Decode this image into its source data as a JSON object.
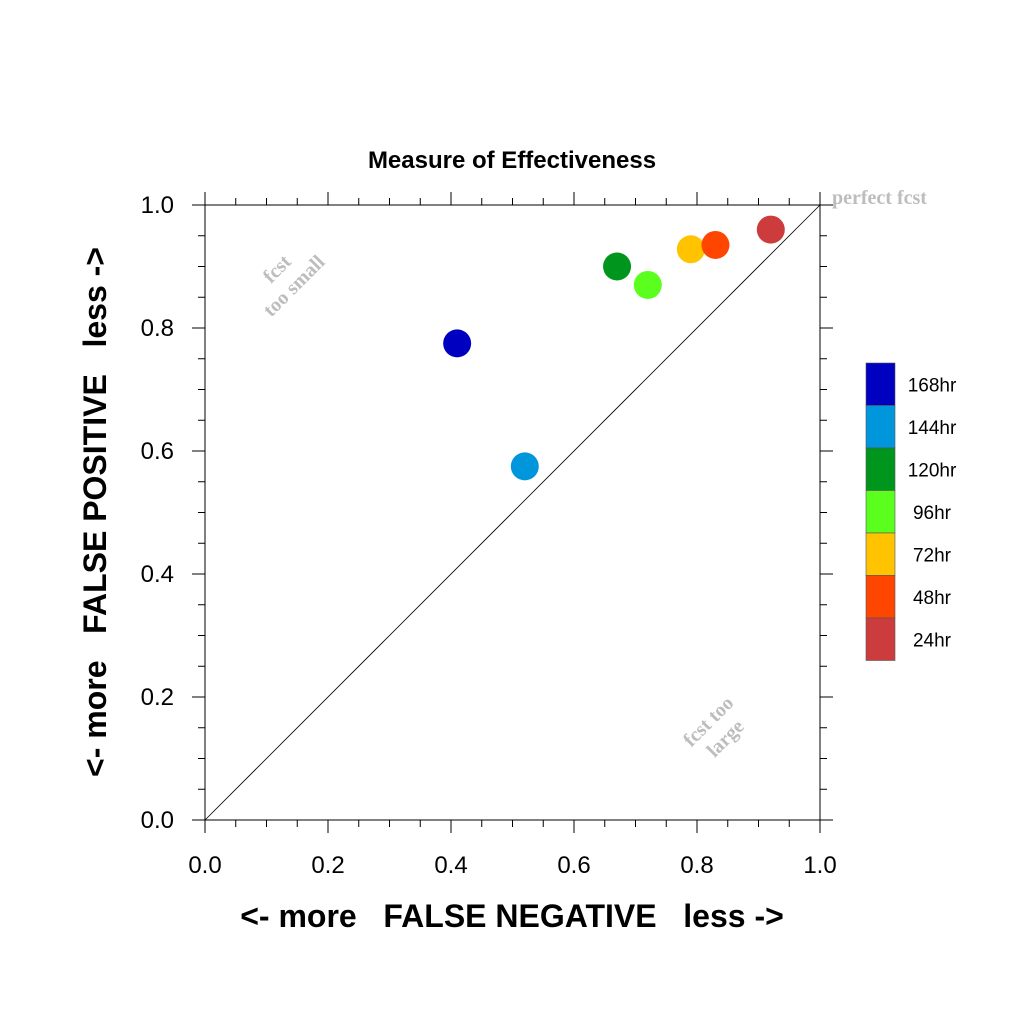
{
  "chart_data": {
    "type": "scatter",
    "title": "Measure of Effectiveness",
    "xlabel": "<- more   FALSE NEGATIVE   less ->",
    "ylabel": "<- more   FALSE POSITIVE   less ->",
    "xlim": [
      0.0,
      1.0
    ],
    "ylim": [
      0.0,
      1.0
    ],
    "xticks": [
      "0.0",
      "0.2",
      "0.4",
      "0.6",
      "0.8",
      "1.0"
    ],
    "yticks": [
      "0.0",
      "0.2",
      "0.4",
      "0.6",
      "0.8",
      "1.0"
    ],
    "grid": false,
    "legend_position": "right",
    "reference_line": "diagonal y = x",
    "series": [
      {
        "name": "168hr",
        "color": "#0000c0",
        "x": 0.41,
        "y": 0.775
      },
      {
        "name": "144hr",
        "color": "#0096dc",
        "x": 0.52,
        "y": 0.575
      },
      {
        "name": "120hr",
        "color": "#00961e",
        "x": 0.67,
        "y": 0.9
      },
      {
        "name": "96hr",
        "color": "#5aff1e",
        "x": 0.72,
        "y": 0.87
      },
      {
        "name": "72hr",
        "color": "#ffc300",
        "x": 0.79,
        "y": 0.928
      },
      {
        "name": "48hr",
        "color": "#ff4600",
        "x": 0.83,
        "y": 0.935
      },
      {
        "name": "24hr",
        "color": "#cd3c3c",
        "x": 0.92,
        "y": 0.96
      }
    ],
    "annotations": {
      "perfect": "perfect fcst",
      "too_small": [
        "fcst",
        "too small"
      ],
      "too_large": [
        "fcst too",
        "large"
      ]
    }
  }
}
